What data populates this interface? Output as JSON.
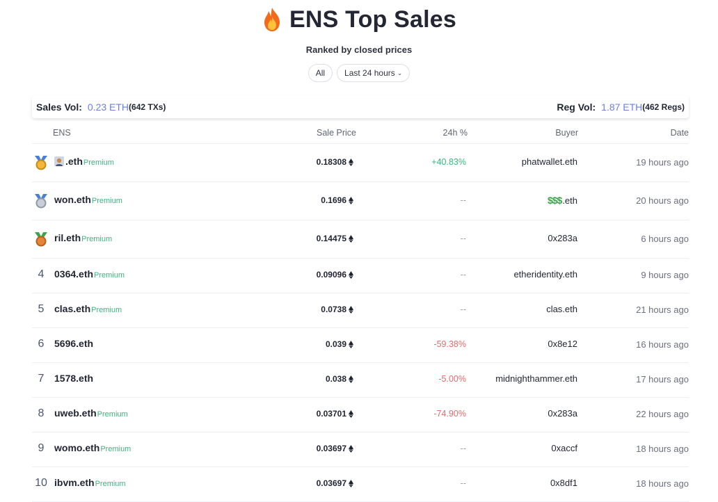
{
  "header": {
    "title": "ENS Top Sales",
    "subtitle": "Ranked by closed prices"
  },
  "filters": {
    "all_label": "All",
    "range_label": "Last 24 hours"
  },
  "summary": {
    "sales_label": "Sales Vol:",
    "sales_vol": "0.23 ETH",
    "sales_count": "(642 TXs)",
    "reg_label": "Reg Vol:",
    "reg_vol": "1.87 ETH",
    "reg_count": "(462 Regs)"
  },
  "columns": {
    "ens": "ENS",
    "price": "Sale Price",
    "change": "24h %",
    "buyer": "Buyer",
    "date": "Date"
  },
  "rows": [
    {
      "rank": "1",
      "medal": "gold",
      "name": ".eth",
      "premium": "Premium",
      "price": "0.18308",
      "change": "+40.83%",
      "change_type": "pos",
      "buyer": "phatwallet.eth",
      "date": "19 hours ago"
    },
    {
      "rank": "2",
      "medal": "silver",
      "name": "won.eth",
      "premium": "Premium",
      "price": "0.1696",
      "change": "--",
      "change_type": "none",
      "buyer_prefix": "$$$",
      "buyer": ".eth",
      "date": "20 hours ago"
    },
    {
      "rank": "3",
      "medal": "bronze",
      "name": "ril.eth",
      "premium": "Premium",
      "price": "0.14475",
      "change": "--",
      "change_type": "none",
      "buyer": "0x283a",
      "date": "6 hours ago"
    },
    {
      "rank": "4",
      "name": "0364.eth",
      "premium": "Premium",
      "price": "0.09096",
      "change": "--",
      "change_type": "none",
      "buyer": "etheridentity.eth",
      "date": "9 hours ago"
    },
    {
      "rank": "5",
      "name": "clas.eth",
      "premium": "Premium",
      "price": "0.0738",
      "change": "--",
      "change_type": "none",
      "buyer": "clas.eth",
      "date": "21 hours ago"
    },
    {
      "rank": "6",
      "name": "5696.eth",
      "premium": "",
      "price": "0.039",
      "change": "-59.38%",
      "change_type": "neg",
      "buyer": "0x8e12",
      "date": "16 hours ago"
    },
    {
      "rank": "7",
      "name": "1578.eth",
      "premium": "",
      "price": "0.038",
      "change": "-5.00%",
      "change_type": "neg",
      "buyer": "midnighthammer.eth",
      "date": "17 hours ago"
    },
    {
      "rank": "8",
      "name": "uweb.eth",
      "premium": "Premium",
      "price": "0.03701",
      "change": "-74.90%",
      "change_type": "neg",
      "buyer": "0x283a",
      "date": "22 hours ago"
    },
    {
      "rank": "9",
      "name": "womo.eth",
      "premium": "Premium",
      "price": "0.03697",
      "change": "--",
      "change_type": "none",
      "buyer": "0xaccf",
      "date": "18 hours ago"
    },
    {
      "rank": "10",
      "name": "ibvm.eth",
      "premium": "Premium",
      "price": "0.03697",
      "change": "--",
      "change_type": "none",
      "buyer": "0x8df1",
      "date": "18 hours ago"
    }
  ],
  "colors": {
    "accent": "#6b7fe0",
    "positive": "#3bb57d",
    "negative": "#e06b6b",
    "premium": "#3bb57d"
  },
  "icons": {
    "title": "fire-icon",
    "price": "eth-icon",
    "medals": [
      "gold-medal-icon",
      "silver-medal-icon",
      "bronze-medal-icon"
    ]
  }
}
